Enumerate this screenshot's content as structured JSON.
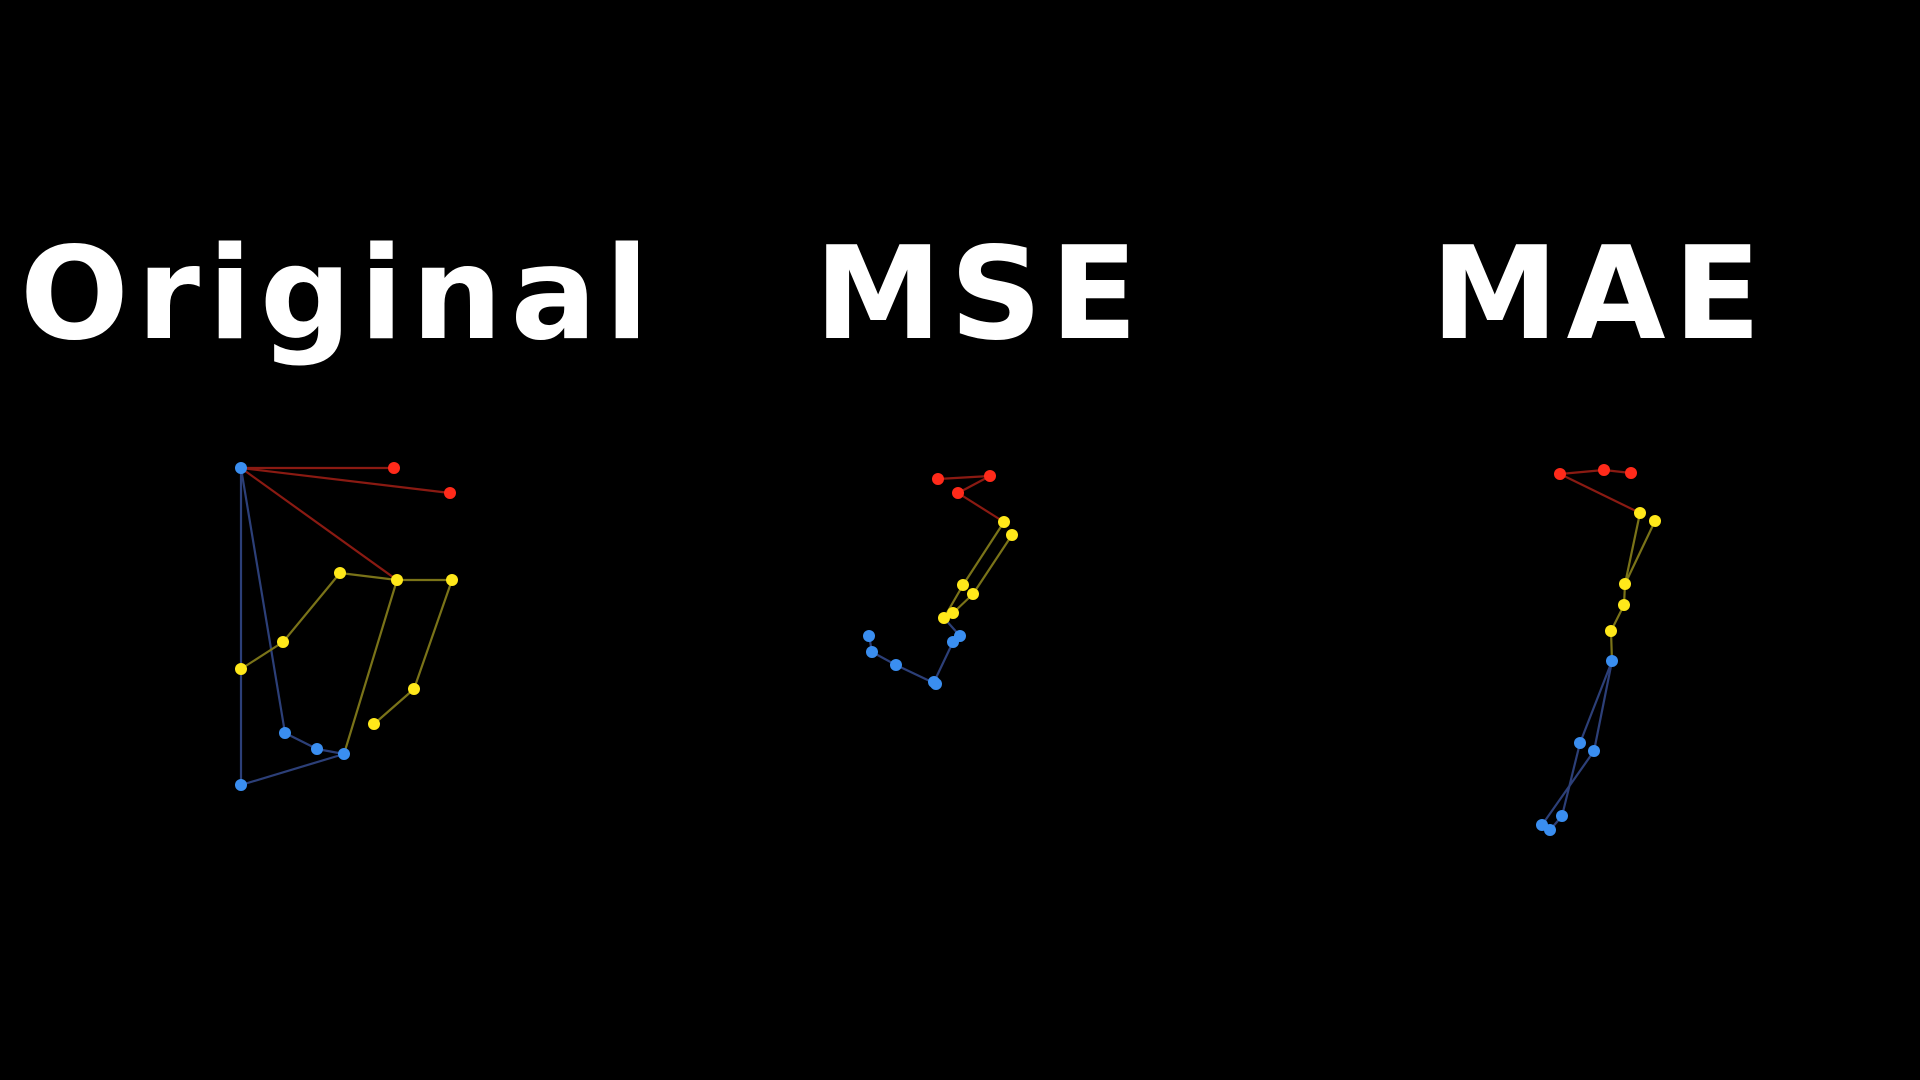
{
  "colors": {
    "background": "#000000",
    "title": "#ffffff",
    "head": "#ff2a1a",
    "head_bone": "#8a1a12",
    "torso": "#ffe81a",
    "torso_bone": "#7a7318",
    "legs": "#3a8ef0",
    "legs_bone": "#2c3f78"
  },
  "panels": [
    {
      "title": "Original",
      "joints": [
        {
          "id": "hub",
          "group": "legs"
        },
        {
          "id": "h1",
          "group": "head"
        },
        {
          "id": "h2",
          "group": "head"
        },
        {
          "id": "t1",
          "group": "torso"
        },
        {
          "id": "t2",
          "group": "torso"
        },
        {
          "id": "t3",
          "group": "torso"
        },
        {
          "id": "t4",
          "group": "torso"
        },
        {
          "id": "t5",
          "group": "torso"
        },
        {
          "id": "t6",
          "group": "torso"
        },
        {
          "id": "t7",
          "group": "torso"
        },
        {
          "id": "l1",
          "group": "legs"
        },
        {
          "id": "l2",
          "group": "legs"
        },
        {
          "id": "l3",
          "group": "legs"
        },
        {
          "id": "l4",
          "group": "legs"
        }
      ],
      "bones": [
        [
          "hub",
          "h1",
          "head"
        ],
        [
          "hub",
          "h2",
          "head"
        ],
        [
          "hub",
          "t2",
          "head"
        ],
        [
          "hub",
          "l1",
          "legs"
        ],
        [
          "hub",
          "l4",
          "legs"
        ],
        [
          "t1",
          "t2",
          "torso"
        ],
        [
          "t2",
          "t3",
          "torso"
        ],
        [
          "t1",
          "t4",
          "torso"
        ],
        [
          "t4",
          "t5",
          "torso"
        ],
        [
          "t3",
          "t6",
          "torso"
        ],
        [
          "t6",
          "t7",
          "torso"
        ],
        [
          "t2",
          "l3",
          "torso"
        ],
        [
          "l1",
          "l2",
          "legs"
        ],
        [
          "l2",
          "l3",
          "legs"
        ],
        [
          "l3",
          "l4",
          "legs"
        ]
      ]
    },
    {
      "title": "MSE",
      "joints": [
        {
          "id": "h1",
          "group": "head"
        },
        {
          "id": "h2",
          "group": "head"
        },
        {
          "id": "h3",
          "group": "head"
        },
        {
          "id": "t1",
          "group": "torso"
        },
        {
          "id": "t2",
          "group": "torso"
        },
        {
          "id": "t3",
          "group": "torso"
        },
        {
          "id": "t4",
          "group": "torso"
        },
        {
          "id": "t5",
          "group": "torso"
        },
        {
          "id": "t6",
          "group": "torso"
        },
        {
          "id": "l1",
          "group": "legs"
        },
        {
          "id": "l2",
          "group": "legs"
        },
        {
          "id": "l3",
          "group": "legs"
        },
        {
          "id": "l4",
          "group": "legs"
        },
        {
          "id": "l5",
          "group": "legs"
        },
        {
          "id": "l6",
          "group": "legs"
        },
        {
          "id": "l7",
          "group": "legs"
        }
      ],
      "bones": [
        [
          "h1",
          "h3",
          "head"
        ],
        [
          "h2",
          "h3",
          "head"
        ],
        [
          "h2",
          "t1",
          "head"
        ],
        [
          "t1",
          "t3",
          "torso"
        ],
        [
          "t2",
          "t4",
          "torso"
        ],
        [
          "t3",
          "t5",
          "torso"
        ],
        [
          "t4",
          "t6",
          "torso"
        ],
        [
          "t5",
          "l1",
          "legs"
        ],
        [
          "l1",
          "l2",
          "legs"
        ],
        [
          "l2",
          "l3",
          "legs"
        ],
        [
          "l3",
          "l4",
          "legs"
        ],
        [
          "l4",
          "l5",
          "legs"
        ],
        [
          "l5",
          "l6",
          "legs"
        ],
        [
          "l6",
          "l7",
          "legs"
        ]
      ]
    },
    {
      "title": "MAE",
      "joints": [
        {
          "id": "h1",
          "group": "head"
        },
        {
          "id": "h2",
          "group": "head"
        },
        {
          "id": "h3",
          "group": "head"
        },
        {
          "id": "t1",
          "group": "torso"
        },
        {
          "id": "t2",
          "group": "torso"
        },
        {
          "id": "t3",
          "group": "torso"
        },
        {
          "id": "t4",
          "group": "torso"
        },
        {
          "id": "t5",
          "group": "torso"
        },
        {
          "id": "l1",
          "group": "legs"
        },
        {
          "id": "l2",
          "group": "legs"
        },
        {
          "id": "l3",
          "group": "legs"
        },
        {
          "id": "l4",
          "group": "legs"
        },
        {
          "id": "l5",
          "group": "legs"
        },
        {
          "id": "l6",
          "group": "legs"
        }
      ],
      "bones": [
        [
          "h1",
          "h2",
          "head"
        ],
        [
          "h2",
          "h3",
          "head"
        ],
        [
          "h1",
          "t1",
          "head"
        ],
        [
          "t1",
          "t3",
          "torso"
        ],
        [
          "t2",
          "t3",
          "torso"
        ],
        [
          "t3",
          "t4",
          "torso"
        ],
        [
          "t4",
          "t5",
          "torso"
        ],
        [
          "t5",
          "l1",
          "torso"
        ],
        [
          "l1",
          "l2",
          "legs"
        ],
        [
          "l1",
          "l3",
          "legs"
        ],
        [
          "l2",
          "l4",
          "legs"
        ],
        [
          "l3",
          "l5",
          "legs"
        ],
        [
          "l5",
          "l6",
          "legs"
        ],
        [
          "l4",
          "l6",
          "legs"
        ]
      ]
    }
  ]
}
